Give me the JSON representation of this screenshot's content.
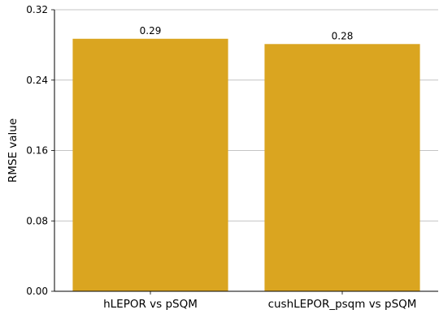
{
  "chart_data": {
    "type": "bar",
    "categories": [
      "hLEPOR vs pSQM",
      "cushLEPOR_psqm vs pSQM"
    ],
    "values": [
      0.287,
      0.281
    ],
    "data_labels": [
      "0.29",
      "0.28"
    ],
    "ylabel": "RMSE value",
    "xlabel": "",
    "ylim": [
      0,
      0.32
    ],
    "yticks": [
      "0.00",
      "0.08",
      "0.16",
      "0.24",
      "0.32"
    ],
    "grid": "horizontal",
    "bar_color": "#DAA520"
  }
}
